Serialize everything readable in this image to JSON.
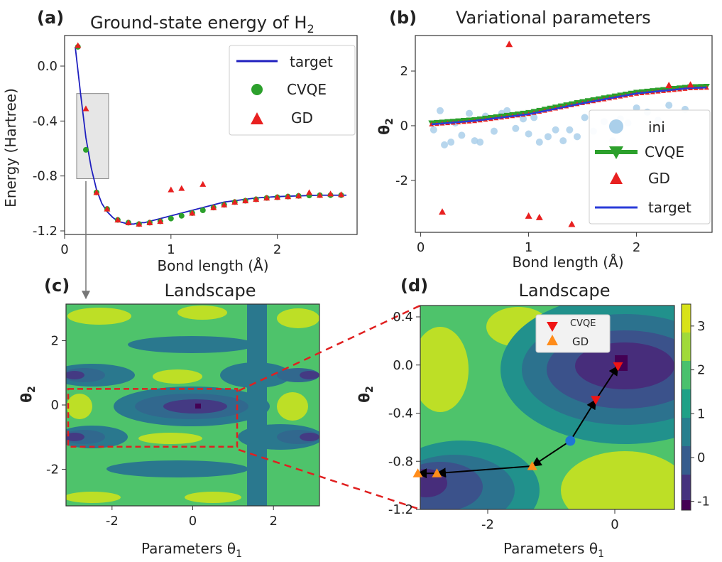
{
  "chart_data": [
    {
      "id": "a",
      "type": "line",
      "panel_label": "(a)",
      "title": "Ground-state energy of H",
      "title_subscript": "2",
      "xlabel": "Bond length (Å)",
      "ylabel": "Energy (Hartree)",
      "xlim": [
        0,
        2.75
      ],
      "ylim": [
        -1.2,
        0.2
      ],
      "xticks": [
        {
          "v": 0,
          "label": "0"
        },
        {
          "v": 1,
          "label": "1"
        },
        {
          "v": 2,
          "label": "2"
        }
      ],
      "yticks": [
        {
          "v": 0.0,
          "label": "0.0"
        },
        {
          "v": -0.4,
          "label": "-0.4"
        },
        {
          "v": -0.8,
          "label": "-0.8"
        },
        {
          "v": -1.2,
          "label": "-1.2"
        }
      ],
      "legend": [
        {
          "label": "target",
          "marker": "line",
          "color": "#1f1fbf"
        },
        {
          "label": "CVQE",
          "marker": "circle",
          "color": "#2ca02c"
        },
        {
          "label": "GD",
          "marker": "triangle",
          "color": "#e82020"
        }
      ],
      "series": [
        {
          "name": "target",
          "x": [
            0.1,
            0.15,
            0.2,
            0.25,
            0.3,
            0.35,
            0.4,
            0.45,
            0.5,
            0.55,
            0.6,
            0.65,
            0.7,
            0.75,
            0.8,
            0.9,
            1.0,
            1.1,
            1.2,
            1.3,
            1.4,
            1.5,
            1.6,
            1.7,
            1.8,
            1.9,
            2.0,
            2.2,
            2.4,
            2.6,
            2.65
          ],
          "y": [
            0.14,
            -0.2,
            -0.52,
            -0.74,
            -0.9,
            -1.0,
            -1.06,
            -1.1,
            -1.13,
            -1.14,
            -1.15,
            -1.15,
            -1.14,
            -1.14,
            -1.13,
            -1.11,
            -1.09,
            -1.07,
            -1.05,
            -1.03,
            -1.01,
            -0.99,
            -0.98,
            -0.97,
            -0.96,
            -0.955,
            -0.95,
            -0.945,
            -0.94,
            -0.94,
            -0.94
          ]
        },
        {
          "name": "CVQE",
          "x": [
            0.125,
            0.2,
            0.3,
            0.4,
            0.5,
            0.6,
            0.7,
            0.8,
            0.9,
            1.0,
            1.1,
            1.2,
            1.3,
            1.4,
            1.5,
            1.6,
            1.7,
            1.8,
            1.9,
            2.0,
            2.1,
            2.2,
            2.3,
            2.4,
            2.5,
            2.6
          ],
          "y": [
            0.14,
            -0.61,
            -0.92,
            -1.04,
            -1.12,
            -1.14,
            -1.15,
            -1.14,
            -1.13,
            -1.11,
            -1.09,
            -1.07,
            -1.05,
            -1.03,
            -1.01,
            -0.99,
            -0.98,
            -0.97,
            -0.96,
            -0.955,
            -0.95,
            -0.945,
            -0.942,
            -0.94,
            -0.94,
            -0.94
          ]
        },
        {
          "name": "GD",
          "x": [
            0.125,
            0.2,
            0.3,
            0.4,
            0.5,
            0.6,
            0.7,
            0.8,
            0.9,
            1.0,
            1.1,
            1.2,
            1.3,
            1.4,
            1.5,
            1.6,
            1.7,
            1.8,
            1.9,
            2.0,
            2.1,
            2.2,
            2.3,
            2.4,
            2.5,
            2.6
          ],
          "y": [
            0.15,
            -0.31,
            -0.92,
            -1.04,
            -1.12,
            -1.14,
            -1.15,
            -1.14,
            -1.13,
            -0.9,
            -0.89,
            -1.07,
            -0.86,
            -1.03,
            -1.01,
            -0.99,
            -0.98,
            -0.97,
            -0.96,
            -0.955,
            -0.95,
            -0.945,
            -0.92,
            -0.94,
            -0.93,
            -0.935
          ]
        }
      ],
      "inset_box": {
        "x": [
          0.1,
          0.3
        ],
        "y": [
          -0.82,
          -0.2
        ]
      }
    },
    {
      "id": "b",
      "type": "line",
      "panel_label": "(b)",
      "title": "Variational parameters",
      "xlabel": "Bond length (Å)",
      "ylabel": "θ",
      "ylabel_subscript": "2",
      "xlim": [
        -0.05,
        2.7
      ],
      "ylim": [
        -3.9,
        3.3
      ],
      "xticks": [
        {
          "v": 0,
          "label": "0"
        },
        {
          "v": 1,
          "label": "1"
        },
        {
          "v": 2,
          "label": "2"
        }
      ],
      "yticks": [
        {
          "v": 2,
          "label": "2"
        },
        {
          "v": 0,
          "label": "0"
        },
        {
          "v": -2,
          "label": "-2"
        }
      ],
      "legend": [
        {
          "label": "ini",
          "marker": "circle",
          "color": "#aacfea"
        },
        {
          "label": "CVQE",
          "marker": "triangle-down-line",
          "color": "#2ca02c"
        },
        {
          "label": "GD",
          "marker": "triangle",
          "color": "#e82020"
        },
        {
          "label": "target",
          "marker": "line",
          "color": "#2a3bd8"
        }
      ],
      "series": [
        {
          "name": "target",
          "x": [
            0.1,
            0.5,
            1.0,
            1.5,
            2.0,
            2.5,
            2.65
          ],
          "y": [
            0.05,
            0.18,
            0.42,
            0.82,
            1.18,
            1.38,
            1.4
          ]
        },
        {
          "name": "CVQE",
          "x": [
            0.1,
            0.5,
            1.0,
            1.5,
            2.0,
            2.5,
            2.65
          ],
          "y": [
            0.1,
            0.22,
            0.48,
            0.88,
            1.22,
            1.42,
            1.44
          ]
        },
        {
          "name": "ini",
          "x": [
            0.12,
            0.18,
            0.22,
            0.28,
            0.32,
            0.38,
            0.45,
            0.5,
            0.55,
            0.6,
            0.68,
            0.75,
            0.8,
            0.88,
            0.95,
            1.0,
            1.05,
            1.1,
            1.18,
            1.25,
            1.32,
            1.38,
            1.45,
            1.52,
            1.6,
            1.7,
            1.78,
            1.85,
            1.92,
            2.0,
            2.1,
            2.2,
            2.3,
            2.45
          ],
          "y": [
            -0.15,
            0.55,
            -0.7,
            -0.6,
            0.1,
            -0.35,
            0.45,
            -0.55,
            -0.6,
            0.35,
            -0.2,
            0.45,
            0.55,
            -0.1,
            0.25,
            -0.3,
            0.3,
            -0.6,
            -0.4,
            -0.15,
            -0.55,
            -0.15,
            -0.4,
            0.3,
            -0.2,
            0.15,
            -0.55,
            0.25,
            0.1,
            0.65,
            0.5,
            0.2,
            0.75,
            0.6
          ]
        },
        {
          "name": "GD",
          "x": [
            0.2,
            0.82,
            1.0,
            1.1,
            1.4,
            2.3,
            2.5
          ],
          "y": [
            -3.15,
            2.98,
            -3.3,
            -3.35,
            -3.6,
            1.48,
            1.5
          ]
        }
      ]
    },
    {
      "id": "c",
      "type": "heatmap",
      "panel_label": "(c)",
      "title": "Landscape",
      "xlabel": "Parameters θ",
      "xlabel_subscript": "1",
      "ylabel": "θ",
      "ylabel_subscript": "2",
      "xlim": [
        -3.14,
        3.14
      ],
      "ylim": [
        -3.14,
        3.14
      ],
      "xticks": [
        {
          "v": -2,
          "label": "-2"
        },
        {
          "v": 0,
          "label": "0"
        },
        {
          "v": 2,
          "label": "2"
        }
      ],
      "yticks": [
        {
          "v": 2,
          "label": "2"
        },
        {
          "v": 0,
          "label": "0"
        },
        {
          "v": -2,
          "label": "-2"
        }
      ],
      "zoom_box": {
        "x": [
          -3.14,
          1.1
        ],
        "y": [
          -1.3,
          0.5
        ]
      }
    },
    {
      "id": "d",
      "type": "heatmap",
      "panel_label": "(d)",
      "title": "Landscape",
      "xlabel": "Parameters θ",
      "xlabel_subscript": "1",
      "ylabel": "θ",
      "ylabel_subscript": "2",
      "xlim": [
        -3.14,
        0.45
      ],
      "ylim": [
        -1.2,
        0.5
      ],
      "xticks": [
        {
          "v": -2,
          "label": "-2"
        },
        {
          "v": 0,
          "label": "0"
        }
      ],
      "yticks": [
        {
          "v": 0.4,
          "label": "0.4"
        },
        {
          "v": 0.0,
          "label": "0.0"
        },
        {
          "v": -0.4,
          "label": "-0.4"
        },
        {
          "v": -0.8,
          "label": "-0.8"
        },
        {
          "v": -1.2,
          "label": "-1.2"
        }
      ],
      "colorbar": {
        "min": -1.2,
        "max": 3.5,
        "ticks": [
          {
            "v": 3,
            "label": "3"
          },
          {
            "v": 2,
            "label": "2"
          },
          {
            "v": 1,
            "label": "1"
          },
          {
            "v": 0,
            "label": "0"
          },
          {
            "v": -1,
            "label": "-1"
          }
        ]
      },
      "legend": [
        {
          "label": "CVQE",
          "marker": "triangle-down",
          "color": "#f01414"
        },
        {
          "label": "GD",
          "marker": "triangle",
          "color": "#ff8c1a"
        }
      ],
      "start_point": {
        "x": -0.7,
        "y": -0.63
      },
      "cvqe_path": {
        "x": [
          -0.7,
          -0.3,
          0.05
        ],
        "y": [
          -0.63,
          -0.29,
          -0.01
        ]
      },
      "gd_path": {
        "x": [
          -0.7,
          -1.3,
          -2.8,
          -3.1
        ],
        "y": [
          -0.63,
          -0.84,
          -0.9,
          -0.9
        ]
      }
    }
  ]
}
